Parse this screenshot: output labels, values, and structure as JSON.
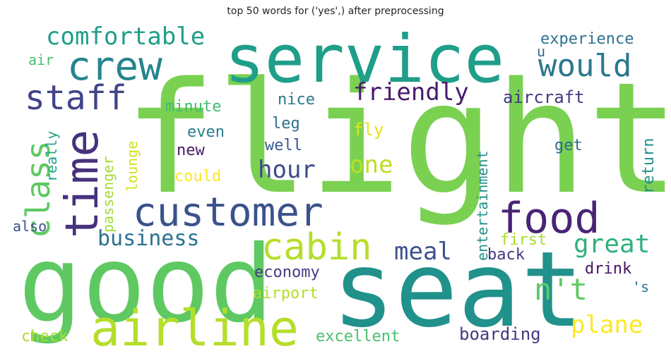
{
  "chart_data": {
    "type": "wordcloud",
    "title": "top 50 words for ('yes',) after preprocessing",
    "words": [
      {
        "text": "flight",
        "color": "#7ad151"
      },
      {
        "text": "service",
        "color": "#1f9e89"
      },
      {
        "text": "good",
        "color": "#5ec962"
      },
      {
        "text": "seat",
        "color": "#21918c"
      },
      {
        "text": "airline",
        "color": "#b5de2b"
      },
      {
        "text": "customer",
        "color": "#3b528b"
      },
      {
        "text": "time",
        "color": "#46327e"
      },
      {
        "text": "crew",
        "color": "#25858e"
      },
      {
        "text": "food",
        "color": "#482475"
      },
      {
        "text": "staff",
        "color": "#414487"
      },
      {
        "text": "cabin",
        "color": "#b5de2b"
      },
      {
        "text": "comfortable",
        "color": "#1f9e89"
      },
      {
        "text": "would",
        "color": "#2a788e"
      },
      {
        "text": "class",
        "color": "#5ec962"
      },
      {
        "text": "friendly",
        "color": "#481a6c"
      },
      {
        "text": "business",
        "color": "#2c728e"
      },
      {
        "text": "hour",
        "color": "#3e4a89"
      },
      {
        "text": "one",
        "color": "#bddf26"
      },
      {
        "text": "n't",
        "color": "#5ec962"
      },
      {
        "text": "plane",
        "color": "#fde725"
      },
      {
        "text": "great",
        "color": "#2db27d"
      },
      {
        "text": "meal",
        "color": "#3b528b"
      },
      {
        "text": "experience",
        "color": "#2c728e"
      },
      {
        "text": "aircraft",
        "color": "#443983"
      },
      {
        "text": "passenger",
        "color": "#a2da37"
      },
      {
        "text": "entertainment",
        "color": "#21918c"
      },
      {
        "text": "economy",
        "color": "#433e85"
      },
      {
        "text": "airport",
        "color": "#b5de2b"
      },
      {
        "text": "excellent",
        "color": "#4ac16d"
      },
      {
        "text": "boarding",
        "color": "#453781"
      },
      {
        "text": "check",
        "color": "#addc30"
      },
      {
        "text": "lounge",
        "color": "#d2e21b"
      },
      {
        "text": "return",
        "color": "#21918c"
      },
      {
        "text": "really",
        "color": "#20a386"
      },
      {
        "text": "minute",
        "color": "#3fbc73"
      },
      {
        "text": "nice",
        "color": "#2a788e"
      },
      {
        "text": "leg",
        "color": "#2c728e"
      },
      {
        "text": "fly",
        "color": "#e5e419"
      },
      {
        "text": "even",
        "color": "#287c8e"
      },
      {
        "text": "new",
        "color": "#481769"
      },
      {
        "text": "well",
        "color": "#38598c"
      },
      {
        "text": "could",
        "color": "#fde725"
      },
      {
        "text": "get",
        "color": "#31688e"
      },
      {
        "text": "first",
        "color": "#a8db34"
      },
      {
        "text": "back",
        "color": "#453882"
      },
      {
        "text": "drink",
        "color": "#471365"
      },
      {
        "text": "'s",
        "color": "#2c728e"
      },
      {
        "text": "also",
        "color": "#3b518b"
      },
      {
        "text": "air",
        "color": "#4ac16d"
      },
      {
        "text": "u",
        "color": "#31688e"
      }
    ]
  }
}
